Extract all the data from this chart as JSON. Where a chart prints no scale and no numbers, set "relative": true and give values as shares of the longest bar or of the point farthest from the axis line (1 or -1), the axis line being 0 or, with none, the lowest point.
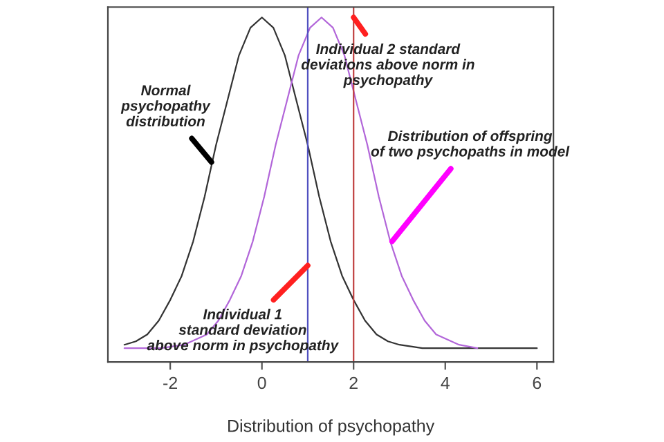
{
  "chart_data": {
    "type": "line",
    "relative": true,
    "xlabel": "Distribution of psychopathy",
    "xlim": [
      -3.36,
      6.36
    ],
    "xticks": [
      -2,
      0,
      2,
      4,
      6
    ],
    "tick_labels": "x",
    "grid": false,
    "legend": false,
    "marker": "none",
    "line_style": "solid",
    "series": [
      {
        "color": "#333333",
        "x": [
          -3,
          -2.75,
          -2.5,
          -2.25,
          -2,
          -1.75,
          -1.5,
          -1.25,
          -1,
          -0.75,
          -0.5,
          -0.25,
          0,
          0.25,
          0.5,
          0.75,
          1,
          1.25,
          1.5,
          1.75,
          2,
          2.25,
          2.5,
          2.75,
          3,
          3.5,
          4,
          5,
          6
        ],
        "values": [
          0.05,
          0.06,
          0.08,
          0.12,
          0.18,
          0.25,
          0.35,
          0.48,
          0.63,
          0.76,
          0.89,
          0.97,
          1,
          0.97,
          0.89,
          0.76,
          0.63,
          0.48,
          0.35,
          0.25,
          0.18,
          0.12,
          0.08,
          0.06,
          0.05,
          0.04,
          0.04,
          0.04,
          0.04
        ]
      },
      {
        "color": "#b266d9",
        "x": [
          -3,
          -2.2,
          -1.7,
          -1.2,
          -0.95,
          -0.7,
          -0.45,
          -0.2,
          0.05,
          0.3,
          0.55,
          0.8,
          1.05,
          1.3,
          1.55,
          1.8,
          2.05,
          2.3,
          2.55,
          2.8,
          3.05,
          3.3,
          3.55,
          3.8,
          4.3,
          4.7
        ],
        "values": [
          0.04,
          0.04,
          0.05,
          0.08,
          0.12,
          0.18,
          0.25,
          0.35,
          0.48,
          0.63,
          0.76,
          0.89,
          0.97,
          1,
          0.97,
          0.89,
          0.76,
          0.63,
          0.48,
          0.35,
          0.25,
          0.18,
          0.12,
          0.08,
          0.05,
          0.04
        ]
      }
    ],
    "ref_lines": [
      {
        "axis": "x",
        "value": 1,
        "color": "#5050c0"
      },
      {
        "axis": "x",
        "value": 2,
        "color": "#c04040"
      }
    ],
    "annotations": [
      {
        "text": "Normal\npsychopathy\ndistribution",
        "x": -1.1,
        "y": 0.58
      },
      {
        "text": "Individual 2 standard\ndeviations above norm in\npsychopathy",
        "x": 2,
        "y": 1.0
      },
      {
        "text": "Distribution of offspring\nof two psychopaths in model",
        "x": 2.84,
        "y": 0.35
      },
      {
        "text": "Individual 1\nstandard deviation\nabove norm in psychopathy",
        "x": 1.0,
        "y": 0.28
      }
    ]
  }
}
